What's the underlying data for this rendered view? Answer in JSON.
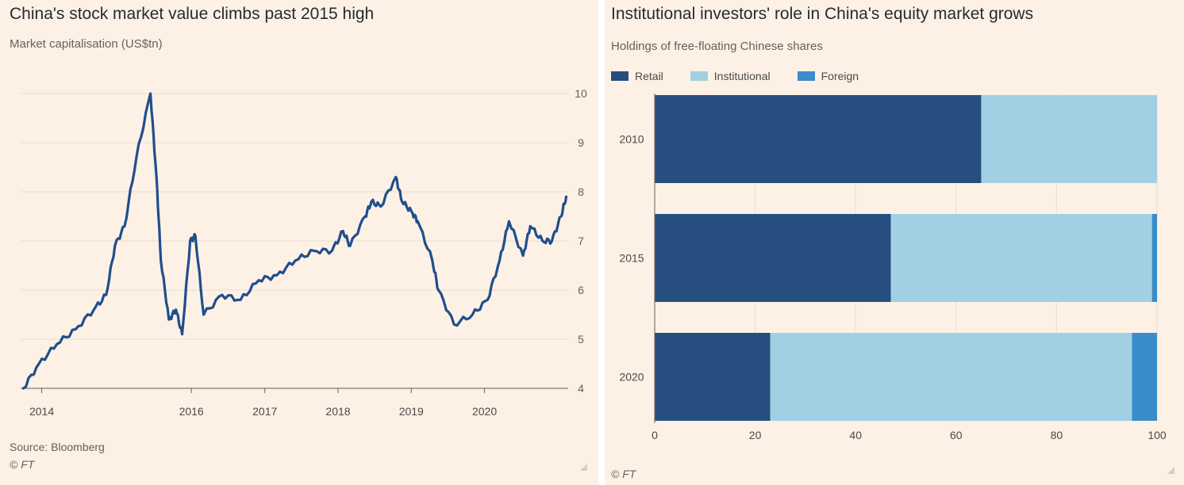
{
  "left": {
    "title": "China's stock market value climbs past 2015 high",
    "subtitle": "Market capitalisation (US$tn)",
    "source": "Source: Bloomberg",
    "copyright": "© FT",
    "line_color": "#1f4e8c"
  },
  "right": {
    "title": "Institutional investors' role in China's equity market grows",
    "subtitle": "Holdings of free-floating Chinese shares",
    "copyright": "© FT",
    "colors": {
      "Retail": "#264f80",
      "Institutional": "#a1d0e4",
      "Foreign": "#3a8cca"
    }
  },
  "chart_data": [
    {
      "type": "line",
      "title": "China's stock market value climbs past 2015 high",
      "subtitle": "Market capitalisation (US$tn)",
      "ylim": [
        4,
        10
      ],
      "yticks": [
        4,
        5,
        6,
        7,
        8,
        9,
        10
      ],
      "xticks": [
        "2014",
        "2016",
        "2017",
        "2018",
        "2019",
        "2020"
      ],
      "grid": true,
      "x": [
        "2013-09-15",
        "2013-12-01",
        "2014-03-01",
        "2014-06-01",
        "2014-09-01",
        "2014-11-01",
        "2014-12-15",
        "2015-02-01",
        "2015-04-01",
        "2015-06-10",
        "2015-07-10",
        "2015-08-01",
        "2015-09-10",
        "2015-10-15",
        "2015-11-15",
        "2015-12-25",
        "2016-01-20",
        "2016-03-01",
        "2016-06-01",
        "2016-09-01",
        "2016-12-01",
        "2017-03-01",
        "2017-06-01",
        "2017-09-01",
        "2017-12-01",
        "2018-01-25",
        "2018-03-01",
        "2018-05-15",
        "2018-06-15",
        "2018-08-01",
        "2018-10-15",
        "2018-11-15",
        "2019-01-01",
        "2019-02-01",
        "2019-04-15",
        "2019-05-15",
        "2019-08-01",
        "2019-11-01",
        "2020-01-15",
        "2020-03-15",
        "2020-05-01",
        "2020-07-10",
        "2020-08-15",
        "2020-10-15",
        "2020-12-01",
        "2021-01-15",
        "2021-02-10"
      ],
      "series": [
        {
          "values": [
            4.0,
            4.5,
            4.9,
            5.2,
            5.6,
            5.9,
            6.9,
            7.3,
            8.7,
            10.0,
            8.3,
            6.6,
            5.4,
            5.6,
            5.1,
            7.0,
            7.1,
            5.5,
            5.9,
            5.8,
            6.2,
            6.3,
            6.6,
            6.8,
            6.8,
            7.2,
            6.9,
            7.5,
            7.8,
            7.7,
            8.3,
            7.8,
            7.6,
            7.4,
            6.6,
            6.0,
            5.3,
            5.5,
            5.8,
            6.6,
            7.4,
            6.7,
            7.3,
            7.0,
            7.0,
            7.5,
            7.9
          ]
        }
      ]
    },
    {
      "type": "bar",
      "orientation": "horizontal",
      "stacked": true,
      "title": "Institutional investors' role in China's equity market grows",
      "subtitle": "Holdings of free-floating Chinese shares",
      "categories": [
        "2010",
        "2015",
        "2020"
      ],
      "xlim": [
        0,
        100
      ],
      "xticks": [
        0,
        20,
        40,
        60,
        80,
        100
      ],
      "legend": "top-left",
      "grid": true,
      "series": [
        {
          "name": "Retail",
          "values": [
            65,
            47,
            23
          ]
        },
        {
          "name": "Institutional",
          "values": [
            35,
            52,
            72
          ]
        },
        {
          "name": "Foreign",
          "values": [
            0,
            1,
            5
          ]
        }
      ]
    }
  ]
}
